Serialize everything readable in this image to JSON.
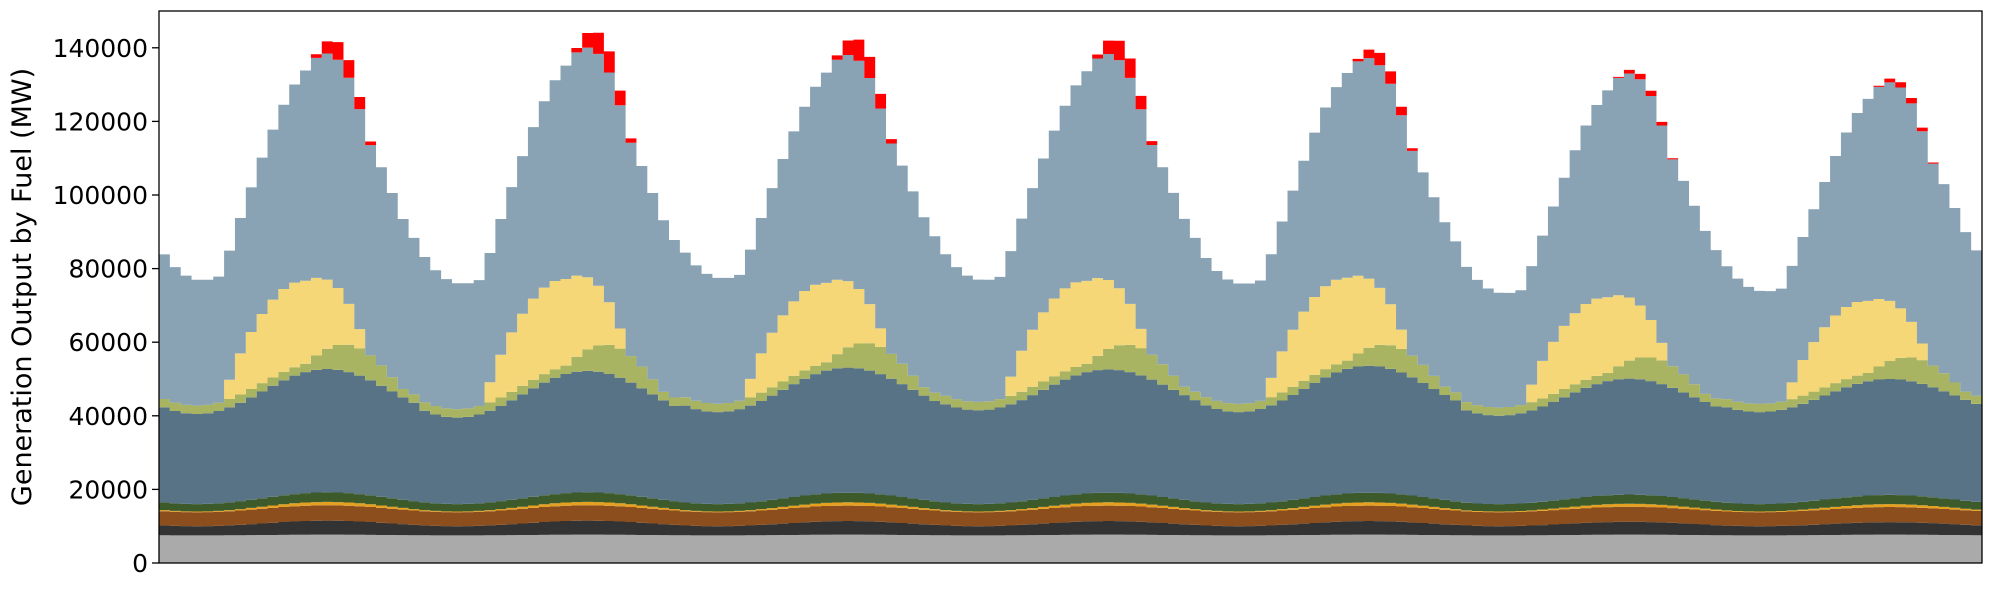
{
  "chart_data": {
    "type": "area",
    "stacked": true,
    "title": "",
    "xlabel": "",
    "ylabel": "Generation Output by Fuel (MW)",
    "ylim": [
      0,
      150000
    ],
    "yticks": [
      0,
      20000,
      40000,
      60000,
      80000,
      100000,
      120000,
      140000
    ],
    "xticks_visible": false,
    "grid": false,
    "legend": "none",
    "days": 7,
    "hours_per_day": 24,
    "series": [
      {
        "color": "#aaaaaa",
        "daily_min": [
          7500,
          7500,
          7500,
          7500,
          7500,
          7500,
          7500
        ],
        "daily_max": [
          7700,
          7700,
          7700,
          7700,
          7700,
          7700,
          7700
        ]
      },
      {
        "color": "#333333",
        "daily_min": [
          2500,
          2500,
          2500,
          2500,
          2500,
          2500,
          2500
        ],
        "daily_max": [
          3800,
          3800,
          3700,
          3700,
          3700,
          3500,
          3400
        ]
      },
      {
        "color": "#8b4e1c",
        "daily_min": [
          3800,
          3800,
          3800,
          3800,
          3800,
          3800,
          3800
        ],
        "daily_max": [
          4200,
          4200,
          4200,
          4200,
          4200,
          4100,
          4100
        ]
      },
      {
        "color": "#e6a020",
        "daily_min": [
          200,
          200,
          200,
          200,
          200,
          200,
          200
        ],
        "daily_max": [
          900,
          900,
          900,
          900,
          900,
          800,
          800
        ]
      },
      {
        "color": "#3d5a2a",
        "daily_min": [
          2000,
          2000,
          2000,
          2000,
          2000,
          2000,
          2000
        ],
        "daily_max": [
          2600,
          2600,
          2600,
          2600,
          2600,
          2500,
          2500
        ]
      },
      {
        "color": "#577385",
        "daily_min": [
          24500,
          23500,
          25000,
          25500,
          25000,
          24000,
          25000
        ],
        "daily_max": [
          33500,
          33000,
          34000,
          33500,
          34500,
          31500,
          31500
        ]
      },
      {
        "color": "#a8b462",
        "daily_min": [
          2000,
          2000,
          2000,
          2000,
          2000,
          2000,
          2000
        ],
        "daily_max": [
          7500,
          8000,
          7500,
          7500,
          6500,
          6500,
          6500
        ]
      },
      {
        "color": "#f5d778",
        "daily_min": [
          0,
          0,
          0,
          0,
          0,
          0,
          0
        ],
        "daily_max": [
          23000,
          24000,
          22000,
          23000,
          23000,
          21000,
          20000
        ]
      },
      {
        "color": "#89a2b4",
        "daily_min": [
          34000,
          34000,
          34000,
          33000,
          32500,
          31000,
          30500
        ],
        "daily_max": [
          62000,
          63000,
          62000,
          62000,
          60500,
          61500,
          60000
        ]
      },
      {
        "color": "#ff0000",
        "daily_min": [
          0,
          0,
          0,
          0,
          0,
          0,
          0
        ],
        "daily_max": [
          5000,
          6000,
          6000,
          5500,
          3500,
          1500,
          1500
        ]
      }
    ]
  }
}
